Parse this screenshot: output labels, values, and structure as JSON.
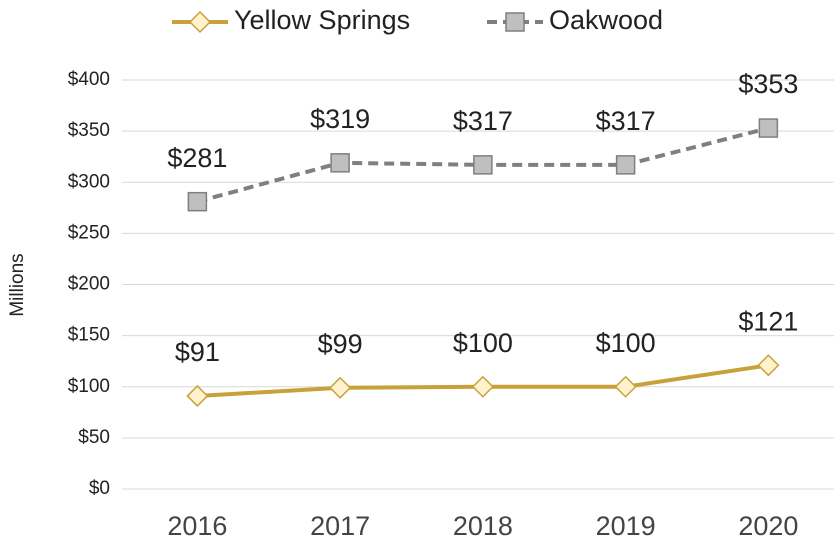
{
  "chart_data": {
    "type": "line",
    "y_label": "Millions",
    "categories": [
      "2016",
      "2017",
      "2018",
      "2019",
      "2020"
    ],
    "series": [
      {
        "name": "Yellow Springs",
        "color": "#C9A13B",
        "marker": "diamond",
        "marker_fill": "#FFF2CC",
        "dashed": false,
        "values": [
          91,
          99,
          100,
          100,
          121
        ],
        "value_labels": [
          "$91",
          "$99",
          "$100",
          "$100",
          "$121"
        ]
      },
      {
        "name": "Oakwood",
        "color": "#7F7F7F",
        "marker": "square",
        "marker_fill": "#BFBFBF",
        "dashed": true,
        "values": [
          281,
          319,
          317,
          317,
          353
        ],
        "value_labels": [
          "$281",
          "$319",
          "$317",
          "$317",
          "$353"
        ]
      }
    ],
    "ylim": [
      0,
      400
    ],
    "yticks": [
      {
        "value": 0,
        "label": "$0"
      },
      {
        "value": 50,
        "label": "$50"
      },
      {
        "value": 100,
        "label": "$100"
      },
      {
        "value": 150,
        "label": "$150"
      },
      {
        "value": 200,
        "label": "$200"
      },
      {
        "value": 250,
        "label": "$250"
      },
      {
        "value": 300,
        "label": "$300"
      },
      {
        "value": 350,
        "label": "$350"
      },
      {
        "value": 400,
        "label": "$400"
      }
    ],
    "grid": true,
    "legend": "top"
  }
}
